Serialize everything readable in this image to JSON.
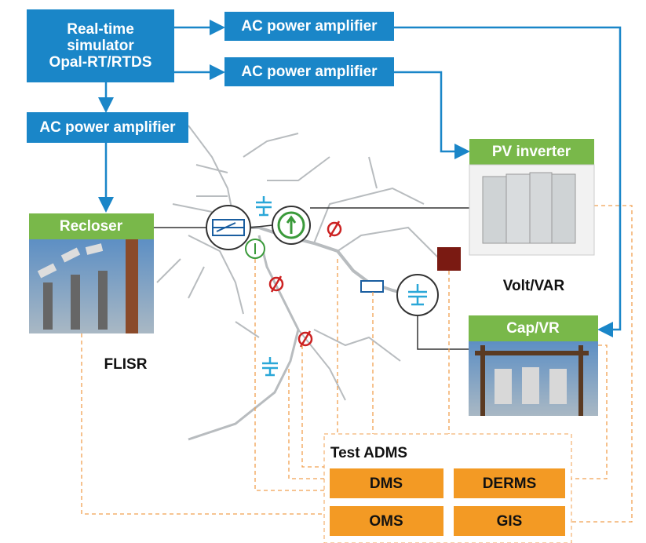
{
  "simulator": {
    "lines": [
      "Real-time",
      "simulator",
      "Opal-RT/RTDS"
    ]
  },
  "amplifiers": [
    "AC power amplifier",
    "AC power amplifier",
    "AC power amplifier"
  ],
  "devices": {
    "recloser": {
      "label": "Recloser",
      "function": "FLISR"
    },
    "pv_inverter": {
      "label": "PV inverter",
      "function": "Volt/VAR"
    },
    "cap_vr": {
      "label": "Cap/VR"
    }
  },
  "adms": {
    "title": "Test ADMS",
    "modules": [
      "DMS",
      "DERMS",
      "OMS",
      "GIS"
    ]
  }
}
